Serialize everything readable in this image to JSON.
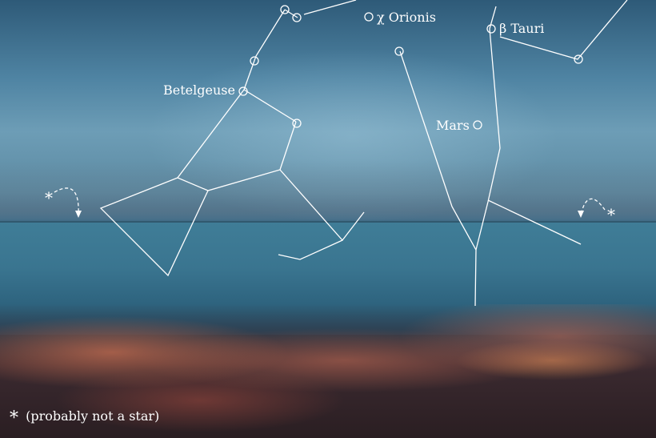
{
  "labels": {
    "betelgeuse": "Betelgeuse",
    "chi_orionis": "χ Orionis",
    "beta_tauri": "β Tauri",
    "mars": "Mars"
  },
  "markers": {
    "left_asterisk": "*",
    "right_asterisk": "*"
  },
  "footnote": {
    "symbol": "*",
    "text": "(probably not a star)"
  }
}
